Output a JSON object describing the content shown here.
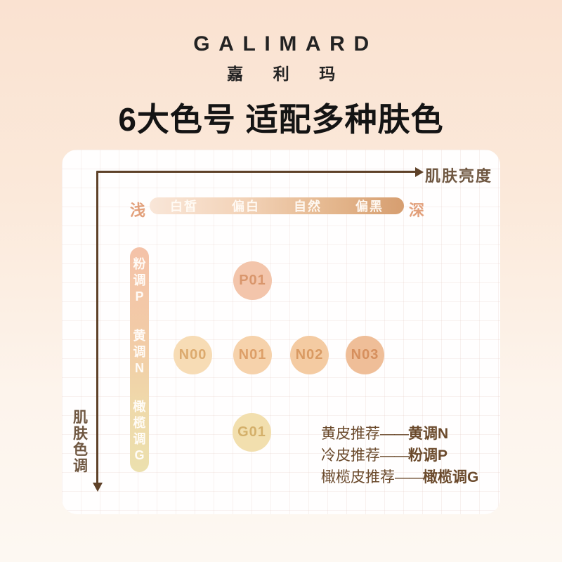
{
  "brand": {
    "name": "GALIMARD",
    "name_cn": "嘉利玛"
  },
  "title": "6大色号 适配多种肤色",
  "chart_data": {
    "type": "scatter",
    "title": "6大色号 适配多种肤色",
    "grid": true,
    "legend_position": "none",
    "x_axis": {
      "label": "肌肤亮度",
      "start_label": "浅",
      "end_label": "深",
      "ticks": [
        "白皙",
        "偏白",
        "自然",
        "偏黑"
      ]
    },
    "y_axis": {
      "label": "肌肤色调",
      "ticks": [
        "粉调P",
        "黄调N",
        "橄榄调G"
      ]
    },
    "points": [
      {
        "id": "P01",
        "tone_row": "粉调P",
        "brightness": "偏白",
        "color": "#f3c5ab",
        "label_color": "#d9966c"
      },
      {
        "id": "N00",
        "tone_row": "黄调N",
        "brightness": "白皙",
        "color": "#f7dcb5",
        "label_color": "#dcaa6e"
      },
      {
        "id": "N01",
        "tone_row": "黄调N",
        "brightness": "偏白",
        "color": "#f6d2ab",
        "label_color": "#dd9f68"
      },
      {
        "id": "N02",
        "tone_row": "黄调N",
        "brightness": "自然",
        "color": "#f4cba2",
        "label_color": "#d99a62"
      },
      {
        "id": "N03",
        "tone_row": "黄调N",
        "brightness": "偏黑",
        "color": "#efbe98",
        "label_color": "#d68f5d"
      },
      {
        "id": "G01",
        "tone_row": "橄榄调G",
        "brightness": "偏白",
        "color": "#f2dfae",
        "label_color": "#d4b06a"
      }
    ]
  },
  "recommendations": [
    {
      "skin": "黄皮推荐",
      "dash": "——",
      "tone": "黄调N"
    },
    {
      "skin": "冷皮推荐",
      "dash": "——",
      "tone": "粉调P"
    },
    {
      "skin": "橄榄皮推荐",
      "dash": "——",
      "tone": "橄榄调G"
    }
  ],
  "colors": {
    "background_top": "#fae2d1",
    "background_bottom": "#fdf8f2",
    "panel": "#fffefe",
    "axis": "#5e4128",
    "axis_label": "#6f5741",
    "scale_end_labels": "#e2a07b",
    "brightness_gradient": [
      "#f9e6d8",
      "#f3d4ba",
      "#e5b88f",
      "#d69e70"
    ],
    "tone_gradient": [
      "#f4c2a8",
      "#f2cda7",
      "#ece0ae"
    ],
    "recommendation_text": "#6b4a2c"
  }
}
